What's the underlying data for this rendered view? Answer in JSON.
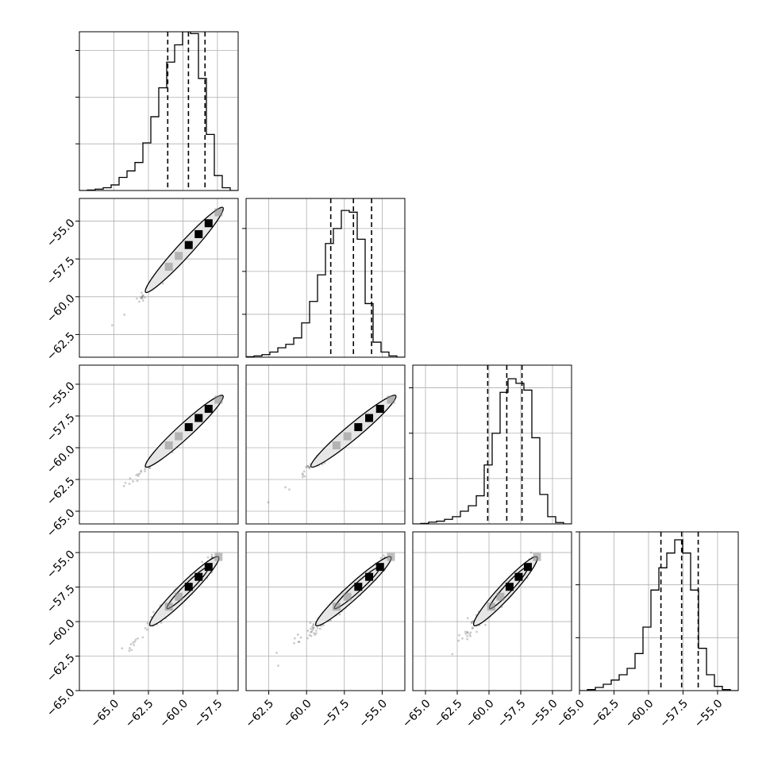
{
  "chart_data": {
    "type": "corner",
    "title": "",
    "n_params": 4,
    "grid": true,
    "colors": {
      "line": "#000000",
      "grid": "#b0b0b0",
      "scatter": "#555555",
      "hist2d_dark": "#000000",
      "hist2d_mid": "#888888",
      "contour_fill": "#e6e6e6"
    },
    "ranges": [
      [
        -67.5,
        -56.0
      ],
      [
        -64.0,
        -53.5
      ],
      [
        -66.0,
        -53.5
      ],
      [
        -65.0,
        -53.5
      ]
    ],
    "ticks": [
      [
        "−65.0",
        "−62.5",
        "−60.0",
        "−57.5"
      ],
      [
        "−62.5",
        "−60.0",
        "−57.5",
        "−55.0"
      ],
      [
        "−65.0",
        "−62.5",
        "−60.0",
        "−57.5",
        "−55.0"
      ],
      [
        "−65.0",
        "−62.5",
        "−60.0",
        "−57.5",
        "−55.0"
      ]
    ],
    "tick_values": [
      [
        -65.0,
        -62.5,
        -60.0,
        -57.5
      ],
      [
        -62.5,
        -60.0,
        -57.5,
        -55.0
      ],
      [
        -65.0,
        -62.5,
        -60.0,
        -57.5,
        -55.0
      ],
      [
        -65.0,
        -62.5,
        -60.0,
        -57.5,
        -55.0
      ]
    ],
    "quantiles": [
      [
        -61.1,
        -59.6,
        -58.4
      ],
      [
        -58.4,
        -56.9,
        -55.7
      ],
      [
        -60.1,
        -58.6,
        -57.4
      ],
      [
        -59.1,
        -57.6,
        -56.4
      ]
    ],
    "hist_ymax": [
      3.4,
      3.7,
      3.5,
      3.0
    ],
    "hist_yticks": [
      1,
      2,
      3
    ],
    "histograms": [
      [
        0.0,
        0.01,
        0.03,
        0.06,
        0.12,
        0.28,
        0.42,
        0.6,
        1.02,
        1.58,
        2.2,
        2.75,
        3.12,
        3.4,
        3.36,
        2.4,
        1.2,
        0.32,
        0.06,
        0.0
      ],
      [
        0.01,
        0.03,
        0.06,
        0.12,
        0.22,
        0.3,
        0.45,
        0.8,
        1.3,
        1.92,
        2.65,
        3.0,
        3.42,
        3.38,
        2.75,
        1.25,
        0.35,
        0.12,
        0.03,
        0.0
      ],
      [
        0.0,
        0.01,
        0.04,
        0.06,
        0.1,
        0.16,
        0.28,
        0.4,
        0.62,
        1.3,
        2.0,
        2.9,
        3.2,
        3.1,
        2.95,
        1.9,
        0.65,
        0.16,
        0.03,
        0.0
      ],
      [
        0.0,
        0.02,
        0.06,
        0.12,
        0.2,
        0.3,
        0.42,
        0.7,
        1.2,
        1.9,
        2.32,
        2.6,
        2.85,
        2.6,
        1.9,
        0.8,
        0.3,
        0.08,
        0.02,
        0.0
      ]
    ],
    "hist2d_peak": [
      -59.3,
      -56.3,
      -58.1,
      -57.2
    ],
    "correlations": [
      [
        1.0,
        0.999,
        0.999,
        0.998
      ],
      [
        0.999,
        1.0,
        0.999,
        0.998
      ],
      [
        0.999,
        0.999,
        1.0,
        0.998
      ],
      [
        0.998,
        0.998,
        0.998,
        1.0
      ]
    ]
  }
}
